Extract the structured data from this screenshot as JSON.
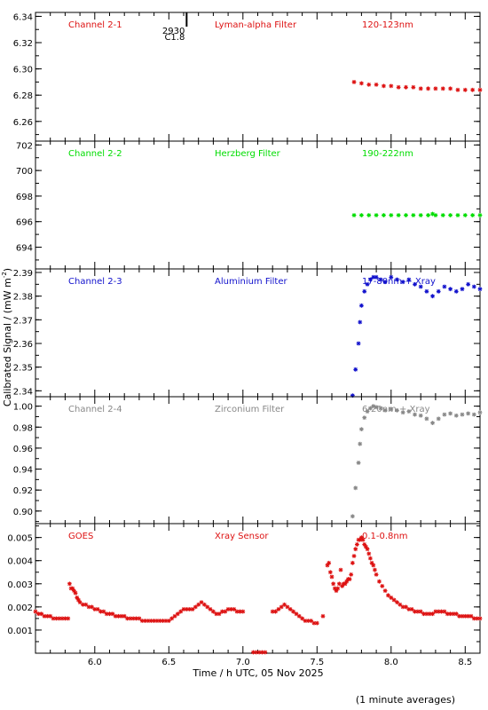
{
  "figure": {
    "ylabel": "Calibrated Signal / (mW m",
    "ylabel_sup": "-2",
    "ylabel_end": ")",
    "xlabel": "Time / h UTC, 05 Nov 2025",
    "footnote": "(1 minute averages)",
    "event_label_top": "2930",
    "event_label_bottom": "C1.8",
    "event_time": 6.62
  },
  "chart_data": [
    {
      "type": "scatter",
      "panel": "Channel 2-1",
      "labels": [
        "Channel 2-1",
        "Lyman-alpha Filter",
        "120-123nm"
      ],
      "color": "#dd1111",
      "xlim": [
        5.6,
        8.6
      ],
      "ylim": [
        6.245,
        6.343
      ],
      "yticks": [
        6.26,
        6.28,
        6.3,
        6.32,
        6.34
      ],
      "ytick_labels": [
        "6.26",
        "6.28",
        "6.30",
        "6.32",
        "6.34"
      ],
      "series": [
        {
          "x": [
            7.75,
            7.8,
            7.85,
            7.9,
            7.95,
            8.0,
            8.05,
            8.1,
            8.15,
            8.2,
            8.25,
            8.3,
            8.35,
            8.4,
            8.45,
            8.5,
            8.55,
            8.6
          ],
          "y": [
            6.29,
            6.289,
            6.288,
            6.288,
            6.287,
            6.287,
            6.286,
            6.286,
            6.286,
            6.285,
            6.285,
            6.285,
            6.285,
            6.285,
            6.284,
            6.284,
            6.284,
            6.284
          ]
        }
      ]
    },
    {
      "type": "scatter",
      "panel": "Channel 2-2",
      "labels": [
        "Channel 2-2",
        "Herzberg Filter",
        "190-222nm"
      ],
      "color": "#00dd00",
      "xlim": [
        5.6,
        8.6
      ],
      "ylim": [
        692.3,
        702.3
      ],
      "yticks": [
        694,
        696,
        698,
        700,
        702
      ],
      "ytick_labels": [
        "694",
        "696",
        "698",
        "700",
        "702"
      ],
      "series": [
        {
          "x": [
            7.75,
            7.8,
            7.85,
            7.9,
            7.95,
            8.0,
            8.05,
            8.1,
            8.15,
            8.2,
            8.25,
            8.28,
            8.3,
            8.35,
            8.4,
            8.45,
            8.5,
            8.55,
            8.6
          ],
          "y": [
            696.5,
            696.5,
            696.5,
            696.5,
            696.5,
            696.5,
            696.5,
            696.5,
            696.5,
            696.5,
            696.5,
            696.6,
            696.5,
            696.5,
            696.5,
            696.5,
            696.5,
            696.5,
            696.5
          ]
        }
      ]
    },
    {
      "type": "scatter",
      "panel": "Channel 2-3",
      "labels": [
        "Channel 2-3",
        "Aluminium Filter",
        "17-80nm + Xray"
      ],
      "color": "#1111cc",
      "xlim": [
        5.6,
        8.6
      ],
      "ylim": [
        2.3375,
        2.3915
      ],
      "yticks": [
        2.34,
        2.35,
        2.36,
        2.37,
        2.38,
        2.39
      ],
      "ytick_labels": [
        "2.34",
        "2.35",
        "2.36",
        "2.37",
        "2.38",
        "2.39"
      ],
      "series": [
        {
          "x": [
            7.74,
            7.76,
            7.78,
            7.79,
            7.8,
            7.82,
            7.84,
            7.86,
            7.88,
            7.9,
            7.93,
            7.96,
            8.0,
            8.04,
            8.08,
            8.12,
            8.16,
            8.2,
            8.24,
            8.28,
            8.32,
            8.36,
            8.4,
            8.44,
            8.48,
            8.52,
            8.56,
            8.6
          ],
          "y": [
            2.338,
            2.349,
            2.36,
            2.369,
            2.376,
            2.382,
            2.385,
            2.387,
            2.388,
            2.388,
            2.387,
            2.386,
            2.388,
            2.387,
            2.386,
            2.387,
            2.385,
            2.384,
            2.382,
            2.38,
            2.382,
            2.384,
            2.383,
            2.382,
            2.383,
            2.385,
            2.384,
            2.383
          ]
        }
      ]
    },
    {
      "type": "scatter",
      "panel": "Channel 2-4",
      "labels": [
        "Channel 2-4",
        "Zirconium Filter",
        "6-20nm + Xray"
      ],
      "color": "#888888",
      "xlim": [
        5.6,
        8.6
      ],
      "ylim": [
        0.888,
        1.009
      ],
      "yticks": [
        0.9,
        0.92,
        0.94,
        0.96,
        0.98,
        1.0
      ],
      "ytick_labels": [
        "0.90",
        "0.92",
        "0.94",
        "0.96",
        "0.98",
        "1.00"
      ],
      "series": [
        {
          "x": [
            7.74,
            7.76,
            7.78,
            7.79,
            7.8,
            7.82,
            7.84,
            7.86,
            7.88,
            7.9,
            7.93,
            7.96,
            8.0,
            8.04,
            8.08,
            8.12,
            8.16,
            8.2,
            8.24,
            8.28,
            8.32,
            8.36,
            8.4,
            8.44,
            8.48,
            8.52,
            8.56,
            8.6
          ],
          "y": [
            0.895,
            0.922,
            0.946,
            0.964,
            0.978,
            0.989,
            0.995,
            0.998,
            1.0,
            0.999,
            0.998,
            0.996,
            0.997,
            0.996,
            0.994,
            0.995,
            0.992,
            0.991,
            0.988,
            0.984,
            0.988,
            0.992,
            0.993,
            0.991,
            0.992,
            0.993,
            0.992,
            0.994
          ]
        }
      ]
    },
    {
      "type": "scatter",
      "panel": "GOES",
      "labels": [
        "GOES",
        "Xray Sensor",
        "0.1-0.8nm"
      ],
      "color": "#dd1111",
      "xlim": [
        5.6,
        8.6
      ],
      "ylim": [
        0.0,
        0.0056
      ],
      "yticks": [
        0.001,
        0.002,
        0.003,
        0.004,
        0.005
      ],
      "ytick_labels": [
        "0.001",
        "0.002",
        "0.003",
        "0.004",
        "0.005"
      ],
      "series": [
        {
          "x": [
            5.6,
            5.62,
            5.64,
            5.66,
            5.68,
            5.7,
            5.72,
            5.74,
            5.76,
            5.78,
            5.8,
            5.82
          ],
          "y": [
            0.0018,
            0.0017,
            0.0017,
            0.0016,
            0.0016,
            0.0016,
            0.0015,
            0.0015,
            0.0015,
            0.0015,
            0.0015,
            0.0015
          ]
        },
        {
          "x": [
            5.83,
            5.84,
            5.85,
            5.86,
            5.87,
            5.88,
            5.89,
            5.9,
            5.92,
            5.94,
            5.96,
            5.98,
            6.0,
            6.02,
            6.04,
            6.06,
            6.08,
            6.1,
            6.12,
            6.14,
            6.16,
            6.18,
            6.2,
            6.22,
            6.24,
            6.26,
            6.28,
            6.3,
            6.32,
            6.34,
            6.36,
            6.38,
            6.4,
            6.42,
            6.44,
            6.46,
            6.48,
            6.5,
            6.52,
            6.54,
            6.56,
            6.58,
            6.6,
            6.62,
            6.64,
            6.66,
            6.68,
            6.7,
            6.72,
            6.74,
            6.76,
            6.78,
            6.8,
            6.82,
            6.84,
            6.86,
            6.88,
            6.9,
            6.92,
            6.94,
            6.96,
            6.98,
            7.0
          ],
          "y": [
            0.003,
            0.0028,
            0.0028,
            0.0027,
            0.0026,
            0.0024,
            0.0023,
            0.0022,
            0.0021,
            0.0021,
            0.002,
            0.002,
            0.0019,
            0.0019,
            0.0018,
            0.0018,
            0.0017,
            0.0017,
            0.0017,
            0.0016,
            0.0016,
            0.0016,
            0.0016,
            0.0015,
            0.0015,
            0.0015,
            0.0015,
            0.0015,
            0.0014,
            0.0014,
            0.0014,
            0.0014,
            0.0014,
            0.0014,
            0.0014,
            0.0014,
            0.0014,
            0.0014,
            0.0015,
            0.0016,
            0.0017,
            0.0018,
            0.0019,
            0.0019,
            0.0019,
            0.0019,
            0.002,
            0.0021,
            0.0022,
            0.0021,
            0.002,
            0.0019,
            0.0018,
            0.0017,
            0.0017,
            0.0018,
            0.0018,
            0.0019,
            0.0019,
            0.0019,
            0.0018,
            0.0018,
            0.0018
          ]
        },
        {
          "x": [
            7.07,
            7.09,
            7.11,
            7.13,
            7.15
          ],
          "y": [
            0.0,
            0.0,
            0.0,
            0.0,
            0.0
          ]
        },
        {
          "x": [
            7.2,
            7.22,
            7.24,
            7.26,
            7.28,
            7.3,
            7.32,
            7.34,
            7.36,
            7.38,
            7.4,
            7.42,
            7.44,
            7.46,
            7.48,
            7.5
          ],
          "y": [
            0.0018,
            0.0018,
            0.0019,
            0.002,
            0.0021,
            0.002,
            0.0019,
            0.0018,
            0.0017,
            0.0016,
            0.0015,
            0.0014,
            0.0014,
            0.0014,
            0.0013,
            0.0013
          ]
        },
        {
          "x": [
            7.54,
            7.57,
            7.58,
            7.59,
            7.6,
            7.61,
            7.62,
            7.63,
            7.64,
            7.65,
            7.66,
            7.67,
            7.68,
            7.69,
            7.7,
            7.71,
            7.72,
            7.73,
            7.74,
            7.75,
            7.76,
            7.77,
            7.78,
            7.79,
            7.8,
            7.81,
            7.82,
            7.83,
            7.84,
            7.85,
            7.86,
            7.87,
            7.88,
            7.89,
            7.9,
            7.92,
            7.94,
            7.96,
            7.98,
            8.0,
            8.02,
            8.04,
            8.06,
            8.08,
            8.1,
            8.12,
            8.14,
            8.16,
            8.18,
            8.2,
            8.22,
            8.24,
            8.26,
            8.28,
            8.3,
            8.32,
            8.34,
            8.36,
            8.38,
            8.4,
            8.42,
            8.44,
            8.46,
            8.48,
            8.5,
            8.52,
            8.54,
            8.56,
            8.58,
            8.6
          ],
          "y": [
            0.0016,
            0.0038,
            0.0039,
            0.0035,
            0.0033,
            0.003,
            0.0028,
            0.0027,
            0.0028,
            0.003,
            0.0036,
            0.0029,
            0.003,
            0.003,
            0.0031,
            0.0032,
            0.0032,
            0.0034,
            0.0039,
            0.0042,
            0.0045,
            0.0047,
            0.0049,
            0.0049,
            0.005,
            0.0049,
            0.0047,
            0.0046,
            0.0045,
            0.0043,
            0.0041,
            0.0039,
            0.0038,
            0.0036,
            0.0034,
            0.0031,
            0.0029,
            0.0027,
            0.0025,
            0.0024,
            0.0023,
            0.0022,
            0.0021,
            0.002,
            0.002,
            0.0019,
            0.0019,
            0.0018,
            0.0018,
            0.0018,
            0.0017,
            0.0017,
            0.0017,
            0.0017,
            0.0018,
            0.0018,
            0.0018,
            0.0018,
            0.0017,
            0.0017,
            0.0017,
            0.0017,
            0.0016,
            0.0016,
            0.0016,
            0.0016,
            0.0016,
            0.0015,
            0.0015,
            0.0015
          ]
        }
      ]
    }
  ],
  "xaxis": {
    "ticks": [
      6.0,
      6.5,
      7.0,
      7.5,
      8.0,
      8.5
    ],
    "tick_labels": [
      "6.0",
      "6.5",
      "7.0",
      "7.5",
      "8.0",
      "8.5"
    ]
  }
}
